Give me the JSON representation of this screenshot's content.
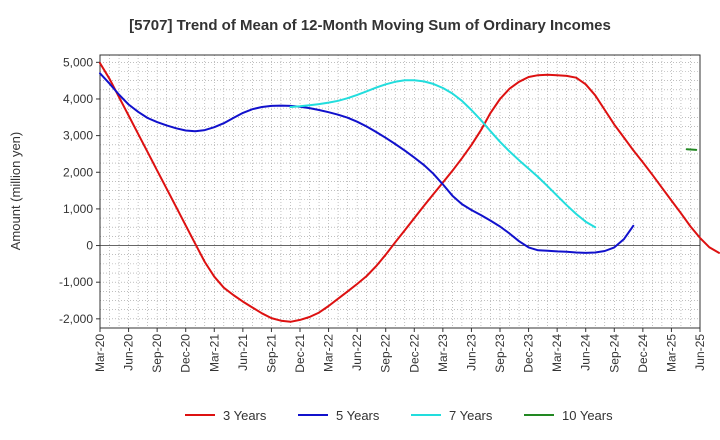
{
  "chart_data": {
    "type": "line",
    "title": "[5707]  Trend of Mean of 12-Month Moving Sum of Ordinary Incomes",
    "xlabel": "",
    "ylabel": "Amount (million yen)",
    "ylim": [
      -2250,
      5200
    ],
    "y_ticks": [
      -2000,
      -1000,
      0,
      1000,
      2000,
      3000,
      4000,
      5000
    ],
    "y_tick_labels": [
      "-2,000",
      "-1,000",
      "0",
      "1,000",
      "2,000",
      "3,000",
      "4,000",
      "5,000"
    ],
    "x_tick_labels": [
      "Mar-20",
      "Jun-20",
      "Sep-20",
      "Dec-20",
      "Mar-21",
      "Jun-21",
      "Sep-21",
      "Dec-21",
      "Mar-22",
      "Jun-22",
      "Sep-22",
      "Dec-22",
      "Mar-23",
      "Jun-23",
      "Sep-23",
      "Dec-23",
      "Mar-24",
      "Jun-24",
      "Sep-24",
      "Dec-24",
      "Mar-25",
      "Jun-25"
    ],
    "x_range_months": [
      0,
      63
    ],
    "grid": true,
    "legend_position": "bottom",
    "series": [
      {
        "name": "3 Years",
        "color": "#dd1111",
        "points": [
          [
            0,
            4980
          ],
          [
            1,
            4550
          ],
          [
            2,
            4050
          ],
          [
            3,
            3550
          ],
          [
            4,
            3050
          ],
          [
            5,
            2550
          ],
          [
            6,
            2050
          ],
          [
            7,
            1550
          ],
          [
            8,
            1050
          ],
          [
            9,
            550
          ],
          [
            10,
            50
          ],
          [
            11,
            -450
          ],
          [
            12,
            -850
          ],
          [
            13,
            -1150
          ],
          [
            14,
            -1350
          ],
          [
            15,
            -1530
          ],
          [
            16,
            -1690
          ],
          [
            17,
            -1850
          ],
          [
            18,
            -1980
          ],
          [
            19,
            -2050
          ],
          [
            20,
            -2080
          ],
          [
            21,
            -2030
          ],
          [
            22,
            -1950
          ],
          [
            23,
            -1830
          ],
          [
            24,
            -1650
          ],
          [
            25,
            -1450
          ],
          [
            26,
            -1250
          ],
          [
            27,
            -1050
          ],
          [
            28,
            -830
          ],
          [
            29,
            -560
          ],
          [
            30,
            -250
          ],
          [
            31,
            90
          ],
          [
            32,
            420
          ],
          [
            33,
            750
          ],
          [
            34,
            1080
          ],
          [
            35,
            1400
          ],
          [
            36,
            1720
          ],
          [
            37,
            2040
          ],
          [
            38,
            2380
          ],
          [
            39,
            2740
          ],
          [
            40,
            3150
          ],
          [
            41,
            3620
          ],
          [
            42,
            4000
          ],
          [
            43,
            4280
          ],
          [
            44,
            4470
          ],
          [
            45,
            4600
          ],
          [
            46,
            4650
          ],
          [
            47,
            4660
          ],
          [
            48,
            4650
          ],
          [
            49,
            4630
          ],
          [
            50,
            4580
          ],
          [
            51,
            4400
          ],
          [
            52,
            4100
          ],
          [
            53,
            3700
          ],
          [
            54,
            3300
          ],
          [
            55,
            2950
          ],
          [
            56,
            2600
          ],
          [
            57,
            2270
          ],
          [
            58,
            1930
          ],
          [
            59,
            1580
          ],
          [
            60,
            1230
          ],
          [
            61,
            880
          ],
          [
            62,
            520
          ],
          [
            63,
            210
          ],
          [
            64,
            -50
          ],
          [
            65,
            -200
          ]
        ]
      },
      {
        "name": "5 Years",
        "color": "#1111cc",
        "points": [
          [
            0,
            4700
          ],
          [
            1,
            4420
          ],
          [
            2,
            4120
          ],
          [
            3,
            3850
          ],
          [
            4,
            3650
          ],
          [
            5,
            3480
          ],
          [
            6,
            3370
          ],
          [
            7,
            3280
          ],
          [
            8,
            3200
          ],
          [
            9,
            3140
          ],
          [
            10,
            3120
          ],
          [
            11,
            3150
          ],
          [
            12,
            3230
          ],
          [
            13,
            3340
          ],
          [
            14,
            3480
          ],
          [
            15,
            3620
          ],
          [
            16,
            3720
          ],
          [
            17,
            3780
          ],
          [
            18,
            3810
          ],
          [
            19,
            3820
          ],
          [
            20,
            3810
          ],
          [
            21,
            3790
          ],
          [
            22,
            3750
          ],
          [
            23,
            3700
          ],
          [
            24,
            3640
          ],
          [
            25,
            3570
          ],
          [
            26,
            3490
          ],
          [
            27,
            3380
          ],
          [
            28,
            3250
          ],
          [
            29,
            3100
          ],
          [
            30,
            2940
          ],
          [
            31,
            2770
          ],
          [
            32,
            2590
          ],
          [
            33,
            2400
          ],
          [
            34,
            2200
          ],
          [
            35,
            1960
          ],
          [
            36,
            1670
          ],
          [
            37,
            1360
          ],
          [
            38,
            1130
          ],
          [
            39,
            970
          ],
          [
            40,
            830
          ],
          [
            41,
            680
          ],
          [
            42,
            520
          ],
          [
            43,
            330
          ],
          [
            44,
            120
          ],
          [
            45,
            -50
          ],
          [
            46,
            -130
          ],
          [
            47,
            -140
          ],
          [
            48,
            -160
          ],
          [
            49,
            -170
          ],
          [
            50,
            -190
          ],
          [
            51,
            -200
          ],
          [
            52,
            -190
          ],
          [
            53,
            -150
          ],
          [
            54,
            -50
          ],
          [
            55,
            170
          ],
          [
            56,
            540
          ]
        ]
      },
      {
        "name": "7 Years",
        "color": "#22dddd",
        "points": [
          [
            20,
            3780
          ],
          [
            21,
            3800
          ],
          [
            22,
            3830
          ],
          [
            23,
            3860
          ],
          [
            24,
            3900
          ],
          [
            25,
            3950
          ],
          [
            26,
            4020
          ],
          [
            27,
            4110
          ],
          [
            28,
            4210
          ],
          [
            29,
            4310
          ],
          [
            30,
            4400
          ],
          [
            31,
            4470
          ],
          [
            32,
            4510
          ],
          [
            33,
            4510
          ],
          [
            34,
            4480
          ],
          [
            35,
            4410
          ],
          [
            36,
            4300
          ],
          [
            37,
            4150
          ],
          [
            38,
            3950
          ],
          [
            39,
            3700
          ],
          [
            40,
            3420
          ],
          [
            41,
            3120
          ],
          [
            42,
            2830
          ],
          [
            43,
            2570
          ],
          [
            44,
            2330
          ],
          [
            45,
            2100
          ],
          [
            46,
            1870
          ],
          [
            47,
            1620
          ],
          [
            48,
            1360
          ],
          [
            49,
            1100
          ],
          [
            50,
            860
          ],
          [
            51,
            650
          ],
          [
            52,
            500
          ]
        ]
      },
      {
        "name": "10 Years",
        "color": "#228822",
        "points": [
          [
            61.6,
            2630
          ],
          [
            62.6,
            2610
          ]
        ]
      }
    ]
  },
  "legend": [
    {
      "label": "3 Years",
      "color": "#dd1111"
    },
    {
      "label": "5 Years",
      "color": "#1111cc"
    },
    {
      "label": "7 Years",
      "color": "#22dddd"
    },
    {
      "label": "10 Years",
      "color": "#228822"
    }
  ]
}
